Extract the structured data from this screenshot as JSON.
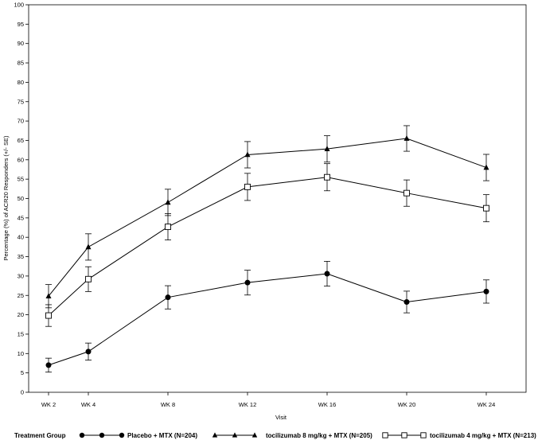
{
  "chart_data": {
    "type": "line",
    "xlabel": "Visit",
    "ylabel": "Percentage (%) of ACR20 Responders (+/- SE)",
    "categories": [
      "WK 2",
      "WK 4",
      "WK 8",
      "WK 12",
      "WK 16",
      "WK 20",
      "WK 24"
    ],
    "x": [
      2,
      4,
      8,
      12,
      16,
      20,
      24
    ],
    "xlim": [
      1,
      26
    ],
    "ylim": [
      0,
      100
    ],
    "yticks": [
      0,
      5,
      10,
      15,
      20,
      25,
      30,
      35,
      40,
      45,
      50,
      55,
      60,
      65,
      70,
      75,
      80,
      85,
      90,
      95,
      100
    ],
    "grid": false,
    "legend_title": "Treatment Group",
    "legend_position": "bottom",
    "series": [
      {
        "name": "Placebo + MTX (N=204)",
        "marker": "filled-circle",
        "values": [
          7,
          10.5,
          24.5,
          28.3,
          30.6,
          23.3,
          26
        ],
        "err": [
          1.8,
          2.2,
          3.0,
          3.2,
          3.2,
          2.8,
          3.0
        ]
      },
      {
        "name": "tocilizumab 8 mg/kg + MTX (N=205)",
        "marker": "filled-triangle",
        "values": [
          24.8,
          37.5,
          49,
          61.3,
          62.8,
          65.5,
          58
        ],
        "err": [
          3.0,
          3.4,
          3.4,
          3.4,
          3.4,
          3.3,
          3.4
        ]
      },
      {
        "name": "tocilizumab 4 mg/kg + MTX (N=213)",
        "marker": "open-square",
        "values": [
          19.8,
          29.2,
          42.7,
          53,
          55.5,
          51.4,
          47.5
        ],
        "err": [
          2.8,
          3.2,
          3.4,
          3.5,
          3.5,
          3.4,
          3.5
        ]
      }
    ]
  }
}
